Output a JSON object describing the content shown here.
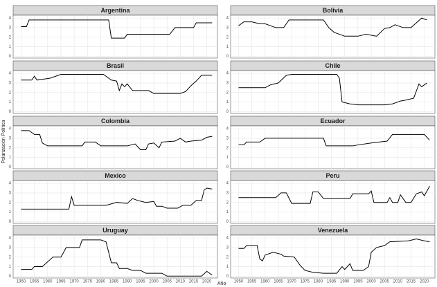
{
  "xlabel": "Año",
  "ylabel": "Polarización Política",
  "chart_data": [
    {
      "type": "line",
      "title": "Argentina",
      "color": "#000000",
      "grid": true,
      "x": [
        1950,
        1952,
        1953,
        1983,
        1984,
        1989,
        1990,
        2006,
        2008,
        2015,
        2016,
        2022
      ],
      "values": [
        3.1,
        3.1,
        3.8,
        3.8,
        1.9,
        1.9,
        2.3,
        2.3,
        3.0,
        3.0,
        3.5,
        3.5
      ],
      "xlim": [
        1947,
        2024
      ],
      "ylim": [
        -0.2,
        4.3
      ],
      "xticks": [
        1950,
        1955,
        1960,
        1965,
        1970,
        1975,
        1980,
        1985,
        1990,
        1995,
        2000,
        2005,
        2010,
        2015,
        2020
      ],
      "yticks": [
        0,
        1,
        2,
        3,
        4
      ]
    },
    {
      "type": "line",
      "title": "Bolivia",
      "color": "#000000",
      "grid": true,
      "x": [
        1950,
        1952,
        1955,
        1958,
        1960,
        1964,
        1967,
        1969,
        1982,
        1984,
        1986,
        1990,
        1995,
        1998,
        2002,
        2005,
        2007,
        2009,
        2012,
        2015,
        2017,
        2019,
        2021
      ],
      "values": [
        3.2,
        3.6,
        3.6,
        3.4,
        3.4,
        3.0,
        3.0,
        3.8,
        3.8,
        3.0,
        2.5,
        2.1,
        2.1,
        2.3,
        2.1,
        2.9,
        3.0,
        3.3,
        3.0,
        3.0,
        3.5,
        4.0,
        3.8
      ],
      "xlim": [
        1947,
        2024
      ],
      "ylim": [
        -0.2,
        4.3
      ],
      "xticks": [
        1950,
        1955,
        1960,
        1965,
        1970,
        1975,
        1980,
        1985,
        1990,
        1995,
        2000,
        2005,
        2010,
        2015,
        2020
      ],
      "yticks": [
        0,
        1,
        2,
        3,
        4
      ]
    },
    {
      "type": "line",
      "title": "Brasil",
      "color": "#000000",
      "grid": true,
      "x": [
        1950,
        1954,
        1955,
        1956,
        1961,
        1963,
        1965,
        1981,
        1984,
        1986,
        1987,
        1988,
        1989,
        1990,
        1992,
        1998,
        2000,
        2010,
        2012,
        2014,
        2016,
        2018,
        2022
      ],
      "values": [
        3.3,
        3.3,
        3.7,
        3.3,
        3.5,
        3.7,
        3.9,
        3.9,
        3.3,
        3.2,
        2.2,
        2.9,
        2.6,
        2.9,
        2.2,
        2.2,
        1.9,
        1.9,
        2.1,
        2.7,
        3.2,
        3.8,
        3.8
      ],
      "xlim": [
        1947,
        2024
      ],
      "ylim": [
        -0.2,
        4.3
      ],
      "xticks": [
        1950,
        1955,
        1960,
        1965,
        1970,
        1975,
        1980,
        1985,
        1990,
        1995,
        2000,
        2005,
        2010,
        2015,
        2020
      ],
      "yticks": [
        0,
        1,
        2,
        3,
        4
      ]
    },
    {
      "type": "line",
      "title": "Chile",
      "color": "#000000",
      "grid": true,
      "x": [
        1950,
        1960,
        1962,
        1965,
        1968,
        1970,
        1987,
        1988,
        1989,
        1992,
        1995,
        2005,
        2008,
        2011,
        2013,
        2016,
        2018,
        2019,
        2021
      ],
      "values": [
        2.5,
        2.5,
        2.8,
        3.0,
        3.8,
        3.9,
        3.9,
        3.5,
        1.0,
        0.8,
        0.7,
        0.7,
        0.8,
        1.1,
        1.2,
        1.4,
        2.9,
        2.6,
        3.0
      ],
      "xlim": [
        1947,
        2024
      ],
      "ylim": [
        -0.2,
        4.3
      ],
      "xticks": [
        1950,
        1955,
        1960,
        1965,
        1970,
        1975,
        1980,
        1985,
        1990,
        1995,
        2000,
        2005,
        2010,
        2015,
        2020
      ],
      "yticks": [
        0,
        1,
        2,
        3,
        4
      ]
    },
    {
      "type": "line",
      "title": "Colombia",
      "color": "#000000",
      "grid": true,
      "x": [
        1950,
        1953,
        1955,
        1957,
        1958,
        1960,
        1973,
        1974,
        1978,
        1980,
        1990,
        1993,
        1995,
        1997,
        1998,
        2000,
        2002,
        2003,
        2008,
        2010,
        2012,
        2014,
        2018,
        2020,
        2022
      ],
      "values": [
        3.8,
        3.8,
        3.4,
        3.4,
        2.5,
        2.2,
        2.2,
        2.6,
        2.6,
        2.2,
        2.2,
        2.4,
        1.8,
        1.8,
        2.4,
        2.5,
        2.0,
        2.6,
        2.7,
        3.0,
        2.6,
        2.7,
        2.8,
        3.1,
        3.2
      ],
      "xlim": [
        1947,
        2024
      ],
      "ylim": [
        -0.2,
        4.3
      ],
      "xticks": [
        1950,
        1955,
        1960,
        1965,
        1970,
        1975,
        1980,
        1985,
        1990,
        1995,
        2000,
        2005,
        2010,
        2015,
        2020
      ],
      "yticks": [
        0,
        1,
        2,
        3,
        4
      ]
    },
    {
      "type": "line",
      "title": "Ecuador",
      "color": "#000000",
      "grid": true,
      "x": [
        1950,
        1952,
        1953,
        1958,
        1960,
        1982,
        1983,
        1993,
        1995,
        2000,
        2006,
        2008,
        2020,
        2022
      ],
      "values": [
        2.3,
        2.3,
        2.6,
        2.6,
        3.0,
        3.0,
        2.2,
        2.2,
        2.3,
        2.5,
        2.7,
        3.4,
        3.4,
        2.8
      ],
      "xlim": [
        1947,
        2024
      ],
      "ylim": [
        -0.2,
        4.3
      ],
      "xticks": [
        1950,
        1955,
        1960,
        1965,
        1970,
        1975,
        1980,
        1985,
        1990,
        1995,
        2000,
        2005,
        2010,
        2015,
        2020
      ],
      "yticks": [
        0,
        1,
        2,
        3,
        4
      ]
    },
    {
      "type": "line",
      "title": "Mexico",
      "color": "#000000",
      "grid": true,
      "x": [
        1950,
        1968,
        1969,
        1970,
        1982,
        1986,
        1990,
        1992,
        1994,
        1997,
        2000,
        2001,
        2003,
        2005,
        2009,
        2011,
        2014,
        2016,
        2018,
        2019,
        2020,
        2022
      ],
      "values": [
        1.3,
        1.3,
        2.6,
        1.7,
        1.7,
        2.0,
        1.9,
        2.4,
        2.2,
        2.0,
        2.1,
        1.6,
        1.6,
        1.4,
        1.4,
        1.7,
        1.7,
        2.2,
        2.2,
        3.3,
        3.5,
        3.4
      ],
      "xlim": [
        1947,
        2024
      ],
      "ylim": [
        -0.2,
        4.3
      ],
      "xticks": [
        1950,
        1955,
        1960,
        1965,
        1970,
        1975,
        1980,
        1985,
        1990,
        1995,
        2000,
        2005,
        2010,
        2015,
        2020
      ],
      "yticks": [
        0,
        1,
        2,
        3,
        4
      ]
    },
    {
      "type": "line",
      "title": "Peru",
      "color": "#000000",
      "grid": true,
      "x": [
        1950,
        1964,
        1966,
        1968,
        1970,
        1977,
        1978,
        1980,
        1982,
        1992,
        1993,
        1999,
        2000,
        2001,
        2006,
        2007,
        2008,
        2010,
        2011,
        2013,
        2015,
        2017,
        2019,
        2020,
        2022
      ],
      "values": [
        2.5,
        2.5,
        3.0,
        3.0,
        1.9,
        1.9,
        3.1,
        3.1,
        2.4,
        2.4,
        2.9,
        2.9,
        3.2,
        2.0,
        2.0,
        2.5,
        2.0,
        2.0,
        2.8,
        2.0,
        2.0,
        2.9,
        3.1,
        2.7,
        3.7
      ],
      "xlim": [
        1947,
        2024
      ],
      "ylim": [
        -0.2,
        4.3
      ],
      "xticks": [
        1950,
        1955,
        1960,
        1965,
        1970,
        1975,
        1980,
        1985,
        1990,
        1995,
        2000,
        2005,
        2010,
        2015,
        2020
      ],
      "yticks": [
        0,
        1,
        2,
        3,
        4
      ]
    },
    {
      "type": "line",
      "title": "Uruguay",
      "color": "#000000",
      "grid": true,
      "x": [
        1950,
        1954,
        1955,
        1958,
        1962,
        1965,
        1967,
        1972,
        1973,
        1980,
        1982,
        1984,
        1986,
        1987,
        1990,
        1992,
        1995,
        1997,
        2003,
        2005,
        2018,
        2020,
        2022
      ],
      "values": [
        0.7,
        0.7,
        1.0,
        1.0,
        2.0,
        2.0,
        3.0,
        3.0,
        3.8,
        3.8,
        3.6,
        1.4,
        1.4,
        0.8,
        0.8,
        0.6,
        0.6,
        0.3,
        0.3,
        0.0,
        0.0,
        0.5,
        0.1
      ],
      "xlim": [
        1947,
        2024
      ],
      "ylim": [
        -0.2,
        4.3
      ],
      "xticks": [
        1950,
        1955,
        1960,
        1965,
        1970,
        1975,
        1980,
        1985,
        1990,
        1995,
        2000,
        2005,
        2010,
        2015,
        2020
      ],
      "yticks": [
        0,
        1,
        2,
        3,
        4
      ]
    },
    {
      "type": "line",
      "title": "Venezuela",
      "color": "#000000",
      "grid": true,
      "x": [
        1950,
        1952,
        1953,
        1957,
        1958,
        1959,
        1960,
        1963,
        1966,
        1967,
        1971,
        1973,
        1975,
        1978,
        1982,
        1987,
        1989,
        1990,
        1992,
        1993,
        1997,
        1999,
        2000,
        2002,
        2005,
        2007,
        2014,
        2017,
        2020,
        2022
      ],
      "values": [
        2.9,
        2.9,
        3.2,
        3.2,
        1.8,
        1.6,
        2.2,
        2.5,
        2.3,
        2.1,
        2.0,
        1.2,
        0.6,
        0.4,
        0.3,
        0.3,
        1.0,
        0.7,
        1.3,
        0.6,
        0.6,
        1.0,
        2.5,
        3.0,
        3.2,
        3.6,
        3.7,
        3.9,
        3.7,
        3.6
      ],
      "xlim": [
        1947,
        2024
      ],
      "ylim": [
        -0.2,
        4.3
      ],
      "xticks": [
        1950,
        1955,
        1960,
        1965,
        1970,
        1975,
        1980,
        1985,
        1990,
        1995,
        2000,
        2005,
        2010,
        2015,
        2020
      ],
      "yticks": [
        0,
        1,
        2,
        3,
        4
      ]
    }
  ]
}
